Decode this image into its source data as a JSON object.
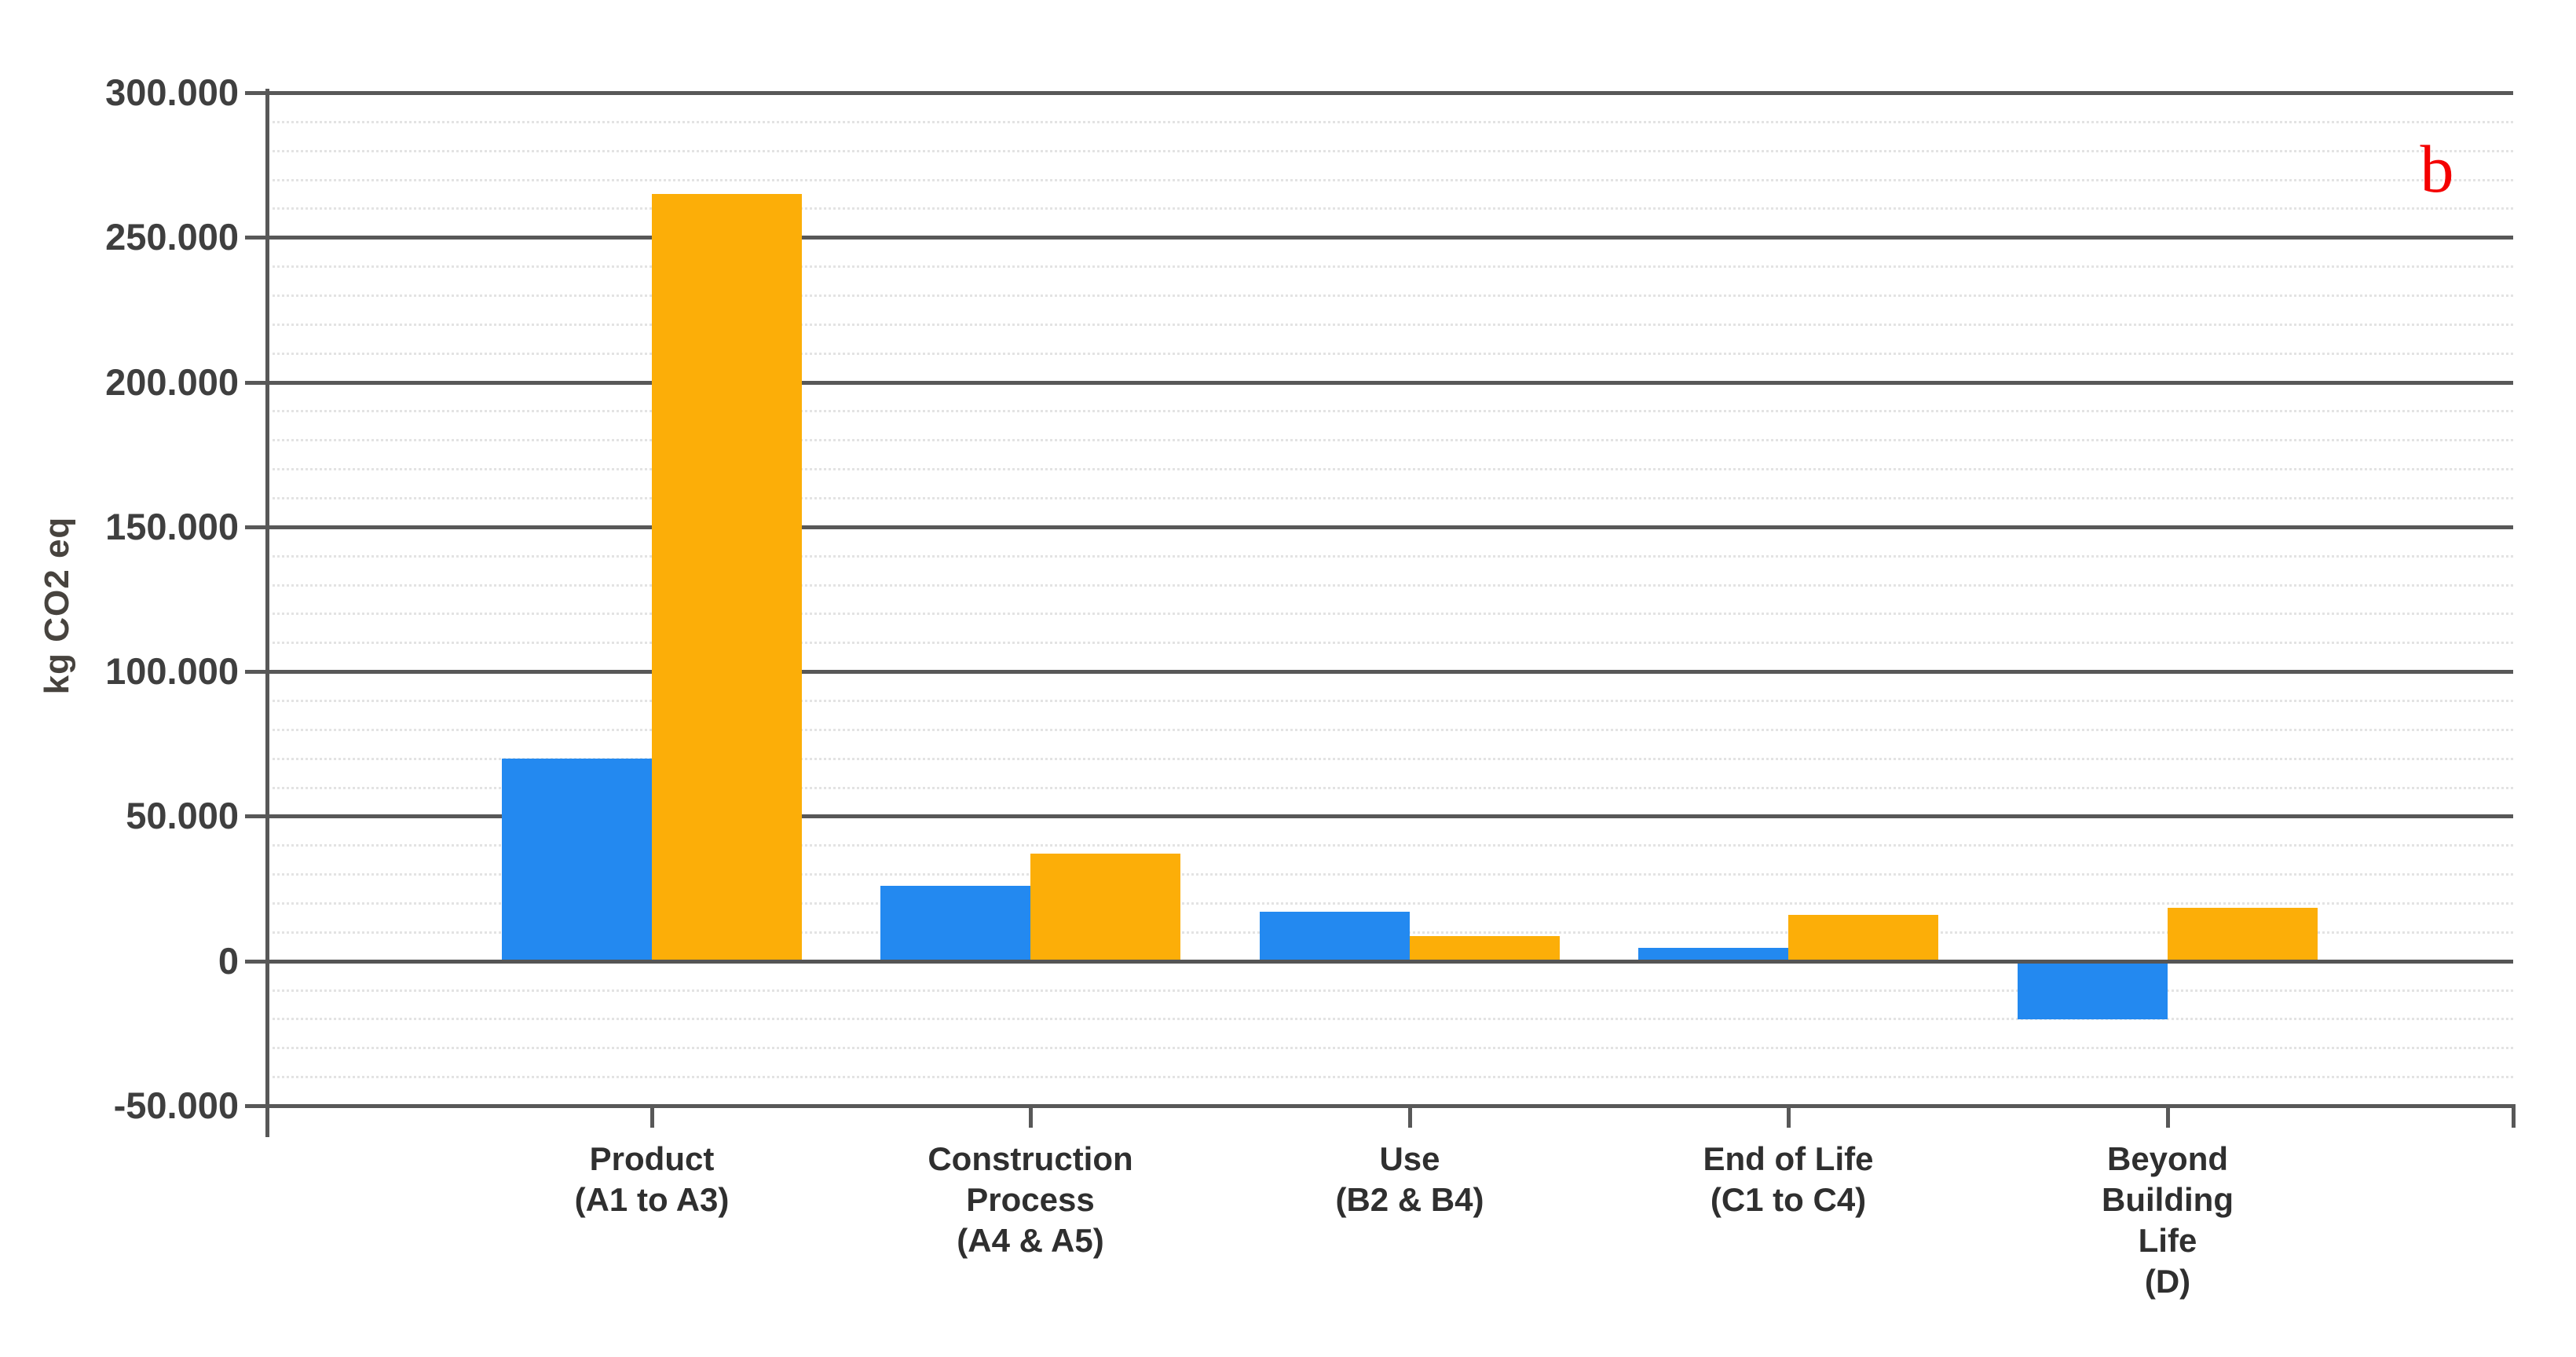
{
  "page": {
    "background": "#ffffff"
  },
  "y_axis": {
    "title": "kg CO2 eq"
  },
  "annotation": {
    "label": "b",
    "color": "#f40000"
  },
  "chart_data": {
    "type": "bar",
    "title": "",
    "xlabel": "",
    "ylabel": "kg CO2 eq",
    "categories": [
      "Product\n(A1 to A3)",
      "Construction\nProcess\n(A4 & A5)",
      "Use\n(B2 & B4)",
      "End of Life\n(C1 to C4)",
      "Beyond\nBuilding\nLife\n(D)"
    ],
    "series": [
      {
        "name": "blue",
        "color": "#2389f0",
        "values": [
          70000,
          26000,
          17000,
          4500,
          -19500
        ]
      },
      {
        "name": "orange",
        "color": "#fcae08",
        "values": [
          265000,
          37000,
          8500,
          16000,
          18500
        ]
      }
    ],
    "ylim": [
      -50000,
      300000
    ],
    "ytick_step": 50000,
    "yminor_step": 10000,
    "ytick_labels": [
      "300.000",
      "250.000",
      "200.000",
      "150.000",
      "100.000",
      "50.000",
      "0",
      "-50.000"
    ],
    "grid": "horizontal majors (dark) + minors (dotted light)",
    "legend": "none",
    "annotation_top_right": "b"
  }
}
